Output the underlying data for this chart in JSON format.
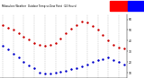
{
  "title": "Milwaukee Weather  Outdoor Temp vs Dew Point  (24 Hours)",
  "bg_color": "#ffffff",
  "grid_color": "#bbbbbb",
  "hours": [
    0,
    1,
    2,
    3,
    4,
    5,
    6,
    7,
    8,
    9,
    10,
    11,
    12,
    13,
    14,
    15,
    16,
    17,
    18,
    19,
    20,
    21,
    22,
    23
  ],
  "temp": [
    55,
    52,
    50,
    47,
    44,
    41,
    38,
    36,
    35,
    36,
    38,
    42,
    47,
    51,
    55,
    58,
    57,
    54,
    50,
    45,
    40,
    36,
    34,
    33
  ],
  "dew": [
    35,
    32,
    28,
    24,
    20,
    17,
    14,
    10,
    9,
    9,
    10,
    11,
    12,
    13,
    14,
    16,
    18,
    20,
    22,
    23,
    24,
    22,
    20,
    18
  ],
  "temp_color": "#cc0000",
  "dew_color": "#0000cc",
  "legend_temp_color": "#ff0000",
  "legend_dew_color": "#0000ff",
  "marker_size": 1.5,
  "xlim": [
    -0.5,
    23.5
  ],
  "ylim": [
    5,
    65
  ],
  "yticks": [
    10,
    20,
    30,
    40,
    50,
    60
  ],
  "ytick_labels": [
    "10",
    "20",
    "30",
    "40",
    "50",
    "60"
  ],
  "xtick_positions": [
    0,
    1,
    2,
    3,
    4,
    5,
    6,
    7,
    8,
    9,
    10,
    11,
    12,
    13,
    14,
    15,
    16,
    17,
    18,
    19,
    20,
    21,
    22,
    23
  ],
  "xtick_labels": [
    "M",
    "1",
    "3",
    "5",
    "7",
    "9",
    "1",
    "3",
    "5",
    "7",
    "9",
    "1",
    "3",
    "5",
    "7",
    "9",
    "1",
    "3",
    "5",
    "7",
    "9",
    "1",
    "3",
    "5"
  ],
  "grid_positions": [
    0,
    2,
    4,
    6,
    8,
    10,
    12,
    14,
    16,
    18,
    20,
    22
  ]
}
